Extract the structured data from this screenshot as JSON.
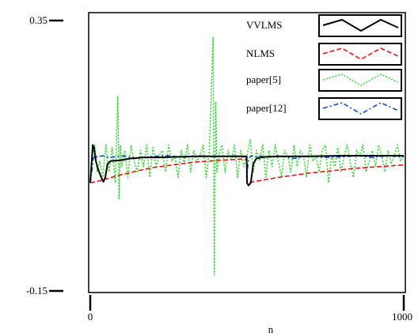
{
  "chart_data": {
    "type": "line",
    "title": "",
    "xlabel": "n",
    "ylabel": "",
    "xlim": [
      0,
      1000
    ],
    "ylim": [
      -0.15,
      0.35
    ],
    "x_ticks": [
      0,
      1000
    ],
    "x_tick_labels": [
      "0",
      "1000"
    ],
    "y_ticks": [
      -0.15,
      0.35
    ],
    "y_tick_labels": [
      "-0.15",
      "0.35"
    ],
    "grid": false,
    "legend": "top-right",
    "series": [
      {
        "name": "VVLMS",
        "color": "#000000",
        "style": "solid",
        "x": [
          0,
          8,
          12,
          18,
          25,
          35,
          42,
          48,
          55,
          65,
          80,
          100,
          130,
          170,
          220,
          280,
          340,
          400,
          499,
          500,
          505,
          512,
          520,
          530,
          545,
          560,
          600,
          700,
          800,
          900,
          1000
        ],
        "y": [
          0.05,
          0.12,
          0.115,
          0.09,
          0.075,
          0.06,
          0.052,
          0.06,
          0.085,
          0.09,
          0.091,
          0.092,
          0.095,
          0.097,
          0.097,
          0.098,
          0.099,
          0.099,
          0.099,
          0.05,
          0.045,
          0.05,
          0.085,
          0.095,
          0.097,
          0.098,
          0.099,
          0.099,
          0.1,
          0.1,
          0.1
        ]
      },
      {
        "name": "NLMS",
        "color": "#ff0000",
        "style": "dashed",
        "x": [
          0,
          20,
          50,
          100,
          150,
          200,
          250,
          300,
          350,
          400,
          450,
          499,
          500,
          520,
          550,
          600,
          650,
          700,
          750,
          800,
          850,
          900,
          950,
          1000
        ],
        "y": [
          0.05,
          0.052,
          0.057,
          0.065,
          0.072,
          0.078,
          0.082,
          0.086,
          0.089,
          0.091,
          0.093,
          0.094,
          0.05,
          0.052,
          0.055,
          0.06,
          0.064,
          0.068,
          0.071,
          0.074,
          0.077,
          0.079,
          0.081,
          0.083
        ]
      },
      {
        "name": "paper[5]",
        "color": "#22dd22",
        "style": "dotted",
        "x": [
          0,
          10,
          15,
          22,
          30,
          40,
          50,
          60,
          70,
          80,
          88,
          92,
          96,
          100,
          110,
          120,
          130,
          140,
          150,
          160,
          170,
          180,
          190,
          200,
          210,
          220,
          230,
          240,
          250,
          260,
          270,
          280,
          290,
          300,
          310,
          320,
          330,
          340,
          350,
          360,
          370,
          380,
          392,
          396,
          400,
          404,
          410,
          420,
          430,
          440,
          450,
          460,
          470,
          480,
          490,
          500,
          510,
          520,
          530,
          540,
          550,
          560,
          570,
          580,
          590,
          600,
          610,
          620,
          630,
          640,
          650,
          660,
          670,
          680,
          690,
          700,
          710,
          720,
          730,
          740,
          750,
          760,
          770,
          780,
          790,
          800,
          810,
          820,
          830,
          840,
          850,
          860,
          870,
          880,
          890,
          900,
          910,
          920,
          930,
          940,
          950,
          960,
          970,
          980,
          990,
          1000
        ],
        "y": [
          0.06,
          0.11,
          0.12,
          0.07,
          0.09,
          0.06,
          0.12,
          0.07,
          0.115,
          0.05,
          0.21,
          0.02,
          0.12,
          0.08,
          0.11,
          0.06,
          0.12,
          0.09,
          0.07,
          0.11,
          0.08,
          0.12,
          0.06,
          0.115,
          0.08,
          0.1,
          0.11,
          0.07,
          0.12,
          0.09,
          0.1,
          0.06,
          0.11,
          0.085,
          0.12,
          0.07,
          0.11,
          0.09,
          0.1,
          0.12,
          0.06,
          0.11,
          0.32,
          -0.12,
          0.2,
          0.07,
          0.1,
          0.12,
          0.07,
          0.11,
          0.09,
          0.12,
          0.06,
          0.11,
          0.08,
          0.1,
          0.13,
          0.07,
          0.11,
          0.09,
          0.12,
          0.06,
          0.11,
          0.08,
          0.12,
          0.09,
          0.06,
          0.11,
          0.1,
          0.07,
          0.12,
          0.08,
          0.11,
          0.1,
          0.06,
          0.12,
          0.09,
          0.1,
          0.07,
          0.11,
          0.12,
          0.05,
          0.1,
          0.08,
          0.115,
          0.07,
          0.1,
          0.12,
          0.085,
          0.06,
          0.11,
          0.1,
          0.12,
          0.07,
          0.09,
          0.11,
          0.08,
          0.12,
          0.1,
          0.07,
          0.11,
          0.085,
          0.1,
          0.12,
          0.09,
          0.1
        ]
      },
      {
        "name": "paper[12]",
        "color": "#0044cc",
        "style": "dashdot",
        "x": [
          0,
          5,
          10,
          15,
          20,
          25,
          30,
          40,
          50,
          60,
          80,
          100,
          150,
          200,
          250,
          300,
          350,
          400,
          450,
          499,
          500,
          503,
          508,
          515,
          525,
          540,
          560,
          600,
          650,
          700,
          750,
          800,
          850,
          900,
          950,
          1000
        ],
        "y": [
          0.05,
          0.07,
          0.095,
          0.1,
          0.098,
          0.1,
          0.099,
          0.1,
          0.098,
          0.097,
          0.098,
          0.1,
          0.095,
          0.099,
          0.1,
          0.097,
          0.1,
          0.098,
          0.1,
          0.098,
          0.06,
          0.085,
          0.097,
          0.1,
          0.098,
          0.1,
          0.097,
          0.1,
          0.095,
          0.1,
          0.097,
          0.098,
          0.1,
          0.097,
          0.1,
          0.098
        ]
      }
    ]
  }
}
